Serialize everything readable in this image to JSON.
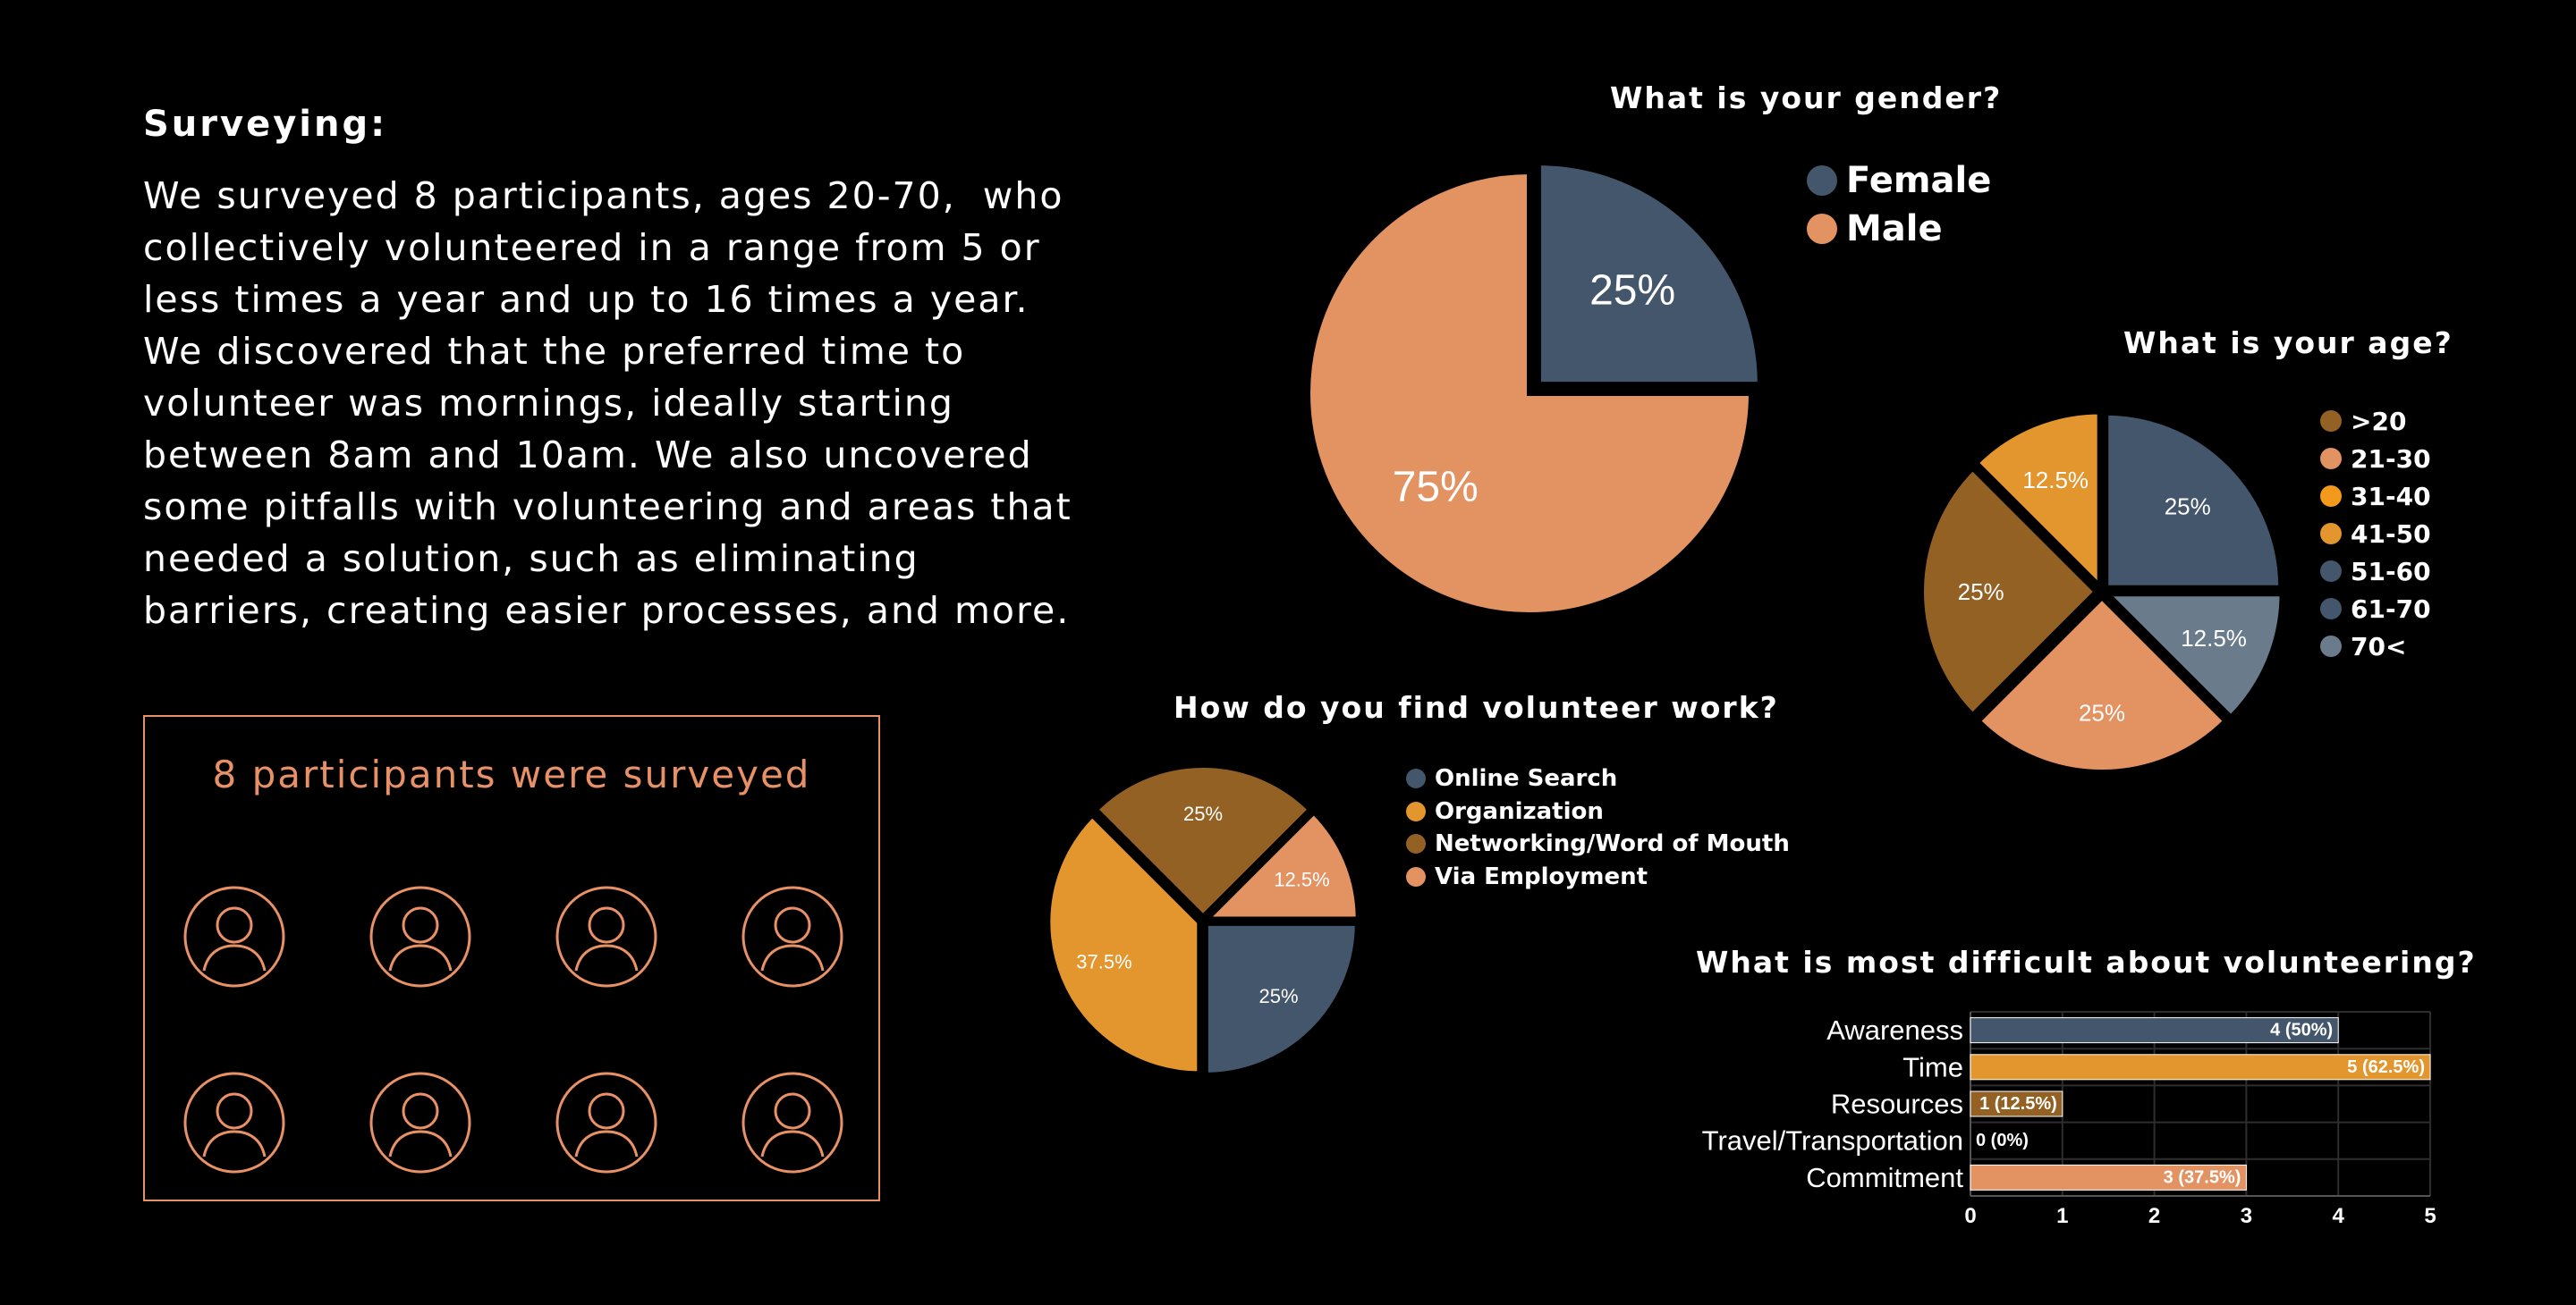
{
  "intro": {
    "heading": "Surveying:",
    "lines": [
      "We surveyed 8 participants, ages 20-70,  who",
      "collectively volunteered in a range from 5 or",
      "less times a year and up to 16 times a year.",
      "We discovered that the preferred time to",
      "volunteer was mornings, ideally starting",
      "between 8am and 10am. We also uncovered",
      "some pitfalls with volunteering and areas that",
      "needed a solution, such as eliminating",
      "barriers, creating easier processes, and more."
    ]
  },
  "participants": {
    "title": "8 participants were surveyed",
    "count": 8,
    "icon": "person-circle-icon",
    "color": "#e89066"
  },
  "chart_data": [
    {
      "type": "pie",
      "title": "What is your gender?",
      "legend_position": "right",
      "slices": [
        {
          "label": "Female",
          "value": 25,
          "display": "25%",
          "color": "#44566b"
        },
        {
          "label": "Male",
          "value": 75,
          "display": "75%",
          "color": "#e39262"
        }
      ]
    },
    {
      "type": "pie",
      "title": "What is your age?",
      "legend_position": "right",
      "legend": [
        {
          "label": ">20",
          "color": "#946125"
        },
        {
          "label": "21-30",
          "color": "#e39262"
        },
        {
          "label": "31-40",
          "color": "#f39a1d"
        },
        {
          "label": "41-50",
          "color": "#e2962d"
        },
        {
          "label": "51-60",
          "color": "#44566b"
        },
        {
          "label": "61-70",
          "color": "#44566b"
        },
        {
          "label": "70<",
          "color": "#6a7c8c"
        }
      ],
      "slices": [
        {
          "label": "51-60",
          "value": 25,
          "display": "25%",
          "color": "#44566b"
        },
        {
          "label": "70<",
          "value": 12.5,
          "display": "12.5%",
          "color": "#6a7c8c"
        },
        {
          "label": "21-30",
          "value": 25,
          "display": "25%",
          "color": "#e39262"
        },
        {
          "label": ">20",
          "value": 25,
          "display": "25%",
          "color": "#946125"
        },
        {
          "label": "41-50",
          "value": 12.5,
          "display": "12.5%",
          "color": "#e2962d"
        }
      ]
    },
    {
      "type": "pie",
      "title": "How do you find volunteer work?",
      "legend_position": "right",
      "legend": [
        {
          "label": "Online Search",
          "color": "#44566b"
        },
        {
          "label": "Organization",
          "color": "#e2962d"
        },
        {
          "label": "Networking/Word of Mouth",
          "color": "#946125"
        },
        {
          "label": "Via Employment",
          "color": "#e39262"
        }
      ],
      "slices": [
        {
          "label": "Online Search",
          "value": 25,
          "display": "25%",
          "color": "#44566b"
        },
        {
          "label": "Organization",
          "value": 37.5,
          "display": "37.5%",
          "color": "#e2962d"
        },
        {
          "label": "Networking/Word of Mouth",
          "value": 25,
          "display": "25%",
          "color": "#946125"
        },
        {
          "label": "Via Employment",
          "value": 12.5,
          "display": "12.5%",
          "color": "#e39262"
        }
      ]
    },
    {
      "type": "bar",
      "orientation": "horizontal",
      "title": "What is most difficult about volunteering?",
      "categories": [
        "Awareness",
        "Time",
        "Resources",
        "Travel/Transportation",
        "Commitment"
      ],
      "values": [
        4,
        5,
        1,
        0,
        3
      ],
      "labels": [
        "4 (50%)",
        "5 (62.5%)",
        "1 (12.5%)",
        "0 (0%)",
        "3 (37.5%)"
      ],
      "colors": [
        "#44566b",
        "#e2962d",
        "#946125",
        "#946125",
        "#e39262"
      ],
      "xlim": [
        0,
        5
      ],
      "xticks": [
        "0",
        "1",
        "2",
        "3",
        "4",
        "5"
      ],
      "grid": true
    }
  ]
}
